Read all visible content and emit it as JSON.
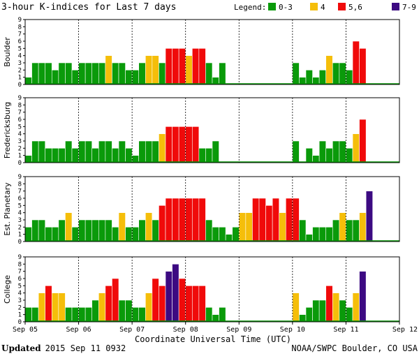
{
  "chart_data": {
    "type": "bar",
    "title": "3-hour K-indices for Last 7 days",
    "xlabel": "Coordinate Universal Time (UTC)",
    "x_ticks": [
      "Sep 05",
      "Sep 06",
      "Sep 07",
      "Sep 08",
      "Sep 09",
      "Sep 10",
      "Sep 11",
      "Sep 12"
    ],
    "ylim": [
      0,
      9
    ],
    "y_ticks": [
      "0",
      "1",
      "2",
      "3",
      "4",
      "5",
      "6",
      "7",
      "8",
      "9"
    ],
    "bins_per_day": 8,
    "legend": {
      "title": "Legend:",
      "entries": [
        {
          "label": "0-3",
          "color": "#0a9a0a"
        },
        {
          "label": "4",
          "color": "#f5be0a"
        },
        {
          "label": "5,6",
          "color": "#f00a0a"
        },
        {
          "label": "7-9",
          "color": "#3c0a82"
        }
      ]
    },
    "series": [
      {
        "name": "Boulder",
        "values": [
          1,
          3,
          3,
          3,
          2,
          3,
          3,
          2,
          3,
          3,
          3,
          3,
          4,
          3,
          3,
          2,
          2,
          3,
          4,
          4,
          3,
          5,
          5,
          5,
          4,
          5,
          5,
          3,
          1,
          3,
          0,
          0,
          0,
          0,
          0,
          0,
          0,
          0,
          0,
          0,
          3,
          1,
          2,
          1,
          2,
          4,
          3,
          3,
          2,
          6,
          5,
          0,
          0,
          0,
          0,
          0,
          0
        ]
      },
      {
        "name": "Fredericksburg",
        "values": [
          1,
          3,
          3,
          2,
          2,
          2,
          3,
          2,
          3,
          3,
          2,
          3,
          3,
          2,
          3,
          2,
          1,
          3,
          3,
          3,
          4,
          5,
          5,
          5,
          5,
          5,
          2,
          2,
          3,
          0,
          0,
          0,
          0,
          0,
          0,
          0,
          0,
          0,
          0,
          0,
          3,
          0,
          2,
          1,
          3,
          2,
          3,
          3,
          2,
          4,
          6,
          0,
          0,
          0,
          0,
          0,
          0
        ]
      },
      {
        "name": "Est. Planetary",
        "values": [
          2,
          3,
          3,
          2,
          2,
          3,
          4,
          2,
          3,
          3,
          3,
          3,
          3,
          2,
          4,
          2,
          2,
          3,
          4,
          3,
          5,
          6,
          6,
          6,
          6,
          6,
          6,
          3,
          2,
          2,
          1,
          2,
          4,
          4,
          6,
          6,
          5,
          6,
          4,
          6,
          6,
          3,
          1,
          2,
          2,
          2,
          3,
          4,
          3,
          3,
          4,
          7,
          0,
          0,
          0,
          0,
          0
        ]
      },
      {
        "name": "College",
        "values": [
          2,
          2,
          4,
          5,
          4,
          4,
          2,
          2,
          2,
          2,
          3,
          4,
          5,
          6,
          3,
          3,
          2,
          2,
          4,
          6,
          5,
          7,
          8,
          6,
          5,
          5,
          5,
          2,
          1,
          2,
          0,
          0,
          0,
          0,
          0,
          0,
          0,
          0,
          0,
          0,
          4,
          1,
          2,
          3,
          3,
          5,
          4,
          3,
          2,
          4,
          7,
          0,
          0,
          0,
          0,
          0,
          0
        ]
      }
    ]
  },
  "footer": {
    "updated_label": "Updated",
    "updated_value": "2015 Sep 11 0932",
    "credit": "NOAA/SWPC Boulder, CO USA"
  }
}
